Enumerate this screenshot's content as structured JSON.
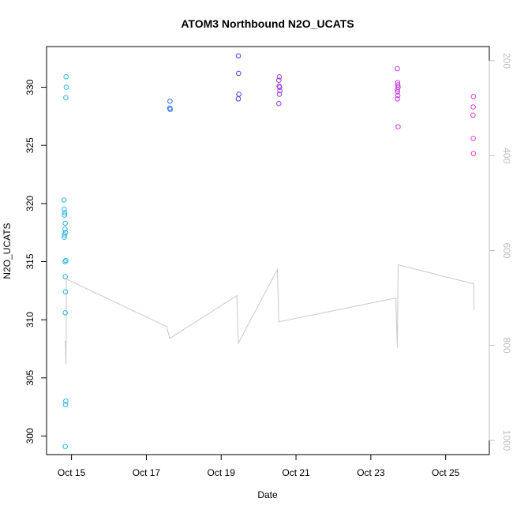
{
  "chart_data": {
    "type": "scatter",
    "title": "ATOM3 Northbound N2O_UCATS",
    "xlabel": "Date",
    "ylabel": "N2O_UCATS",
    "x_axis": {
      "type": "date",
      "range": [
        "2017-10-14T08:00",
        "2017-10-26T04:00"
      ],
      "ticks": [
        {
          "value": "2017-10-15T00:00",
          "label": "Oct 15"
        },
        {
          "value": "2017-10-17T00:00",
          "label": "Oct 17"
        },
        {
          "value": "2017-10-19T00:00",
          "label": "Oct 19"
        },
        {
          "value": "2017-10-21T00:00",
          "label": "Oct 21"
        },
        {
          "value": "2017-10-23T00:00",
          "label": "Oct 23"
        },
        {
          "value": "2017-10-25T00:00",
          "label": "Oct 25"
        }
      ]
    },
    "y_axis": {
      "range": [
        298.4,
        333.5
      ],
      "ticks": [
        300,
        305,
        310,
        315,
        320,
        325,
        330
      ]
    },
    "y2_axis": {
      "reversed": true,
      "color": "#bdbdbd",
      "range": [
        170,
        1030
      ],
      "ticks": [
        200,
        400,
        600,
        800,
        1000
      ]
    },
    "grid": false,
    "legend": "none",
    "points": [
      {
        "x": "2017-10-14T20:30",
        "y": 330.9,
        "color": "#2bb5e8"
      },
      {
        "x": "2017-10-14T20:40",
        "y": 330.0,
        "color": "#2bb5e8"
      },
      {
        "x": "2017-10-14T20:20",
        "y": 329.1,
        "color": "#2bb5e8"
      },
      {
        "x": "2017-10-14T19:10",
        "y": 320.3,
        "color": "#2bb5e8"
      },
      {
        "x": "2017-10-14T19:20",
        "y": 319.5,
        "color": "#2bb5e8"
      },
      {
        "x": "2017-10-14T19:40",
        "y": 319.2,
        "color": "#2bb5e8"
      },
      {
        "x": "2017-10-14T19:30",
        "y": 319.0,
        "color": "#2bb5e8"
      },
      {
        "x": "2017-10-14T20:00",
        "y": 318.3,
        "color": "#2bb5e8"
      },
      {
        "x": "2017-10-14T19:50",
        "y": 317.8,
        "color": "#2bb5e8"
      },
      {
        "x": "2017-10-14T20:10",
        "y": 317.5,
        "color": "#2bb5e8"
      },
      {
        "x": "2017-10-14T19:30",
        "y": 317.3,
        "color": "#2bb5e8"
      },
      {
        "x": "2017-10-14T19:20",
        "y": 317.1,
        "color": "#2bb5e8"
      },
      {
        "x": "2017-10-14T20:20",
        "y": 315.1,
        "color": "#2bb5e8"
      },
      {
        "x": "2017-10-14T19:50",
        "y": 315.0,
        "color": "#2bb5e8"
      },
      {
        "x": "2017-10-14T20:00",
        "y": 313.7,
        "color": "#2bb5e8"
      },
      {
        "x": "2017-10-14T20:10",
        "y": 312.4,
        "color": "#2bb5e8"
      },
      {
        "x": "2017-10-14T20:00",
        "y": 310.6,
        "color": "#2bb5e8"
      },
      {
        "x": "2017-10-14T20:20",
        "y": 303.0,
        "color": "#2bb5e8"
      },
      {
        "x": "2017-10-14T20:10",
        "y": 302.7,
        "color": "#2bb5e8"
      },
      {
        "x": "2017-10-14T20:00",
        "y": 299.1,
        "color": "#2bb5e8"
      },
      {
        "x": "2017-10-17T15:10",
        "y": 328.8,
        "color": "#2f6be8"
      },
      {
        "x": "2017-10-17T15:00",
        "y": 328.2,
        "color": "#2f6be8"
      },
      {
        "x": "2017-10-17T15:20",
        "y": 328.1,
        "color": "#2f6be8"
      },
      {
        "x": "2017-10-19T11:00",
        "y": 332.7,
        "color": "#4a3be0"
      },
      {
        "x": "2017-10-19T11:10",
        "y": 331.2,
        "color": "#4a3be0"
      },
      {
        "x": "2017-10-19T11:20",
        "y": 329.4,
        "color": "#4a3be0"
      },
      {
        "x": "2017-10-19T11:00",
        "y": 329.0,
        "color": "#4a3be0"
      },
      {
        "x": "2017-10-20T13:20",
        "y": 330.9,
        "color": "#a23ae6"
      },
      {
        "x": "2017-10-20T13:00",
        "y": 330.6,
        "color": "#a23ae6"
      },
      {
        "x": "2017-10-20T13:10",
        "y": 330.1,
        "color": "#a23ae6"
      },
      {
        "x": "2017-10-20T13:30",
        "y": 330.0,
        "color": "#a23ae6"
      },
      {
        "x": "2017-10-20T13:40",
        "y": 329.7,
        "color": "#a23ae6"
      },
      {
        "x": "2017-10-20T13:20",
        "y": 329.4,
        "color": "#a23ae6"
      },
      {
        "x": "2017-10-20T13:00",
        "y": 328.6,
        "color": "#a23ae6"
      },
      {
        "x": "2017-10-23T17:00",
        "y": 331.6,
        "color": "#c63adf"
      },
      {
        "x": "2017-10-23T17:10",
        "y": 330.4,
        "color": "#c63adf"
      },
      {
        "x": "2017-10-23T17:20",
        "y": 330.2,
        "color": "#c63adf"
      },
      {
        "x": "2017-10-23T17:30",
        "y": 330.0,
        "color": "#c63adf"
      },
      {
        "x": "2017-10-23T17:00",
        "y": 329.8,
        "color": "#c63adf"
      },
      {
        "x": "2017-10-23T17:10",
        "y": 329.6,
        "color": "#c63adf"
      },
      {
        "x": "2017-10-23T17:20",
        "y": 329.3,
        "color": "#c63adf"
      },
      {
        "x": "2017-10-23T17:00",
        "y": 329.0,
        "color": "#c63adf"
      },
      {
        "x": "2017-10-23T17:30",
        "y": 326.6,
        "color": "#c63adf"
      },
      {
        "x": "2017-10-25T17:50",
        "y": 329.2,
        "color": "#e23ad9"
      },
      {
        "x": "2017-10-25T17:40",
        "y": 328.3,
        "color": "#e23ad9"
      },
      {
        "x": "2017-10-25T17:30",
        "y": 327.6,
        "color": "#e23ad9"
      },
      {
        "x": "2017-10-25T17:40",
        "y": 325.6,
        "color": "#e23ad9"
      },
      {
        "x": "2017-10-25T17:50",
        "y": 324.3,
        "color": "#e23ad9"
      }
    ],
    "pressure_line": {
      "axis": "right",
      "color": "#c8c8c8",
      "points": [
        {
          "x": "2017-10-14T20:00",
          "y": 790
        },
        {
          "x": "2017-10-14T20:30",
          "y": 840
        },
        {
          "x": "2017-10-14T20:40",
          "y": 660
        },
        {
          "x": "2017-10-17T13:00",
          "y": 760
        },
        {
          "x": "2017-10-17T15:00",
          "y": 785
        },
        {
          "x": "2017-10-19T10:00",
          "y": 695
        },
        {
          "x": "2017-10-19T11:00",
          "y": 795
        },
        {
          "x": "2017-10-20T12:00",
          "y": 640
        },
        {
          "x": "2017-10-20T13:00",
          "y": 750
        },
        {
          "x": "2017-10-23T16:00",
          "y": 700
        },
        {
          "x": "2017-10-23T17:00",
          "y": 805
        },
        {
          "x": "2017-10-23T17:30",
          "y": 630
        },
        {
          "x": "2017-10-25T18:00",
          "y": 670
        },
        {
          "x": "2017-10-25T18:10",
          "y": 725
        }
      ]
    }
  }
}
